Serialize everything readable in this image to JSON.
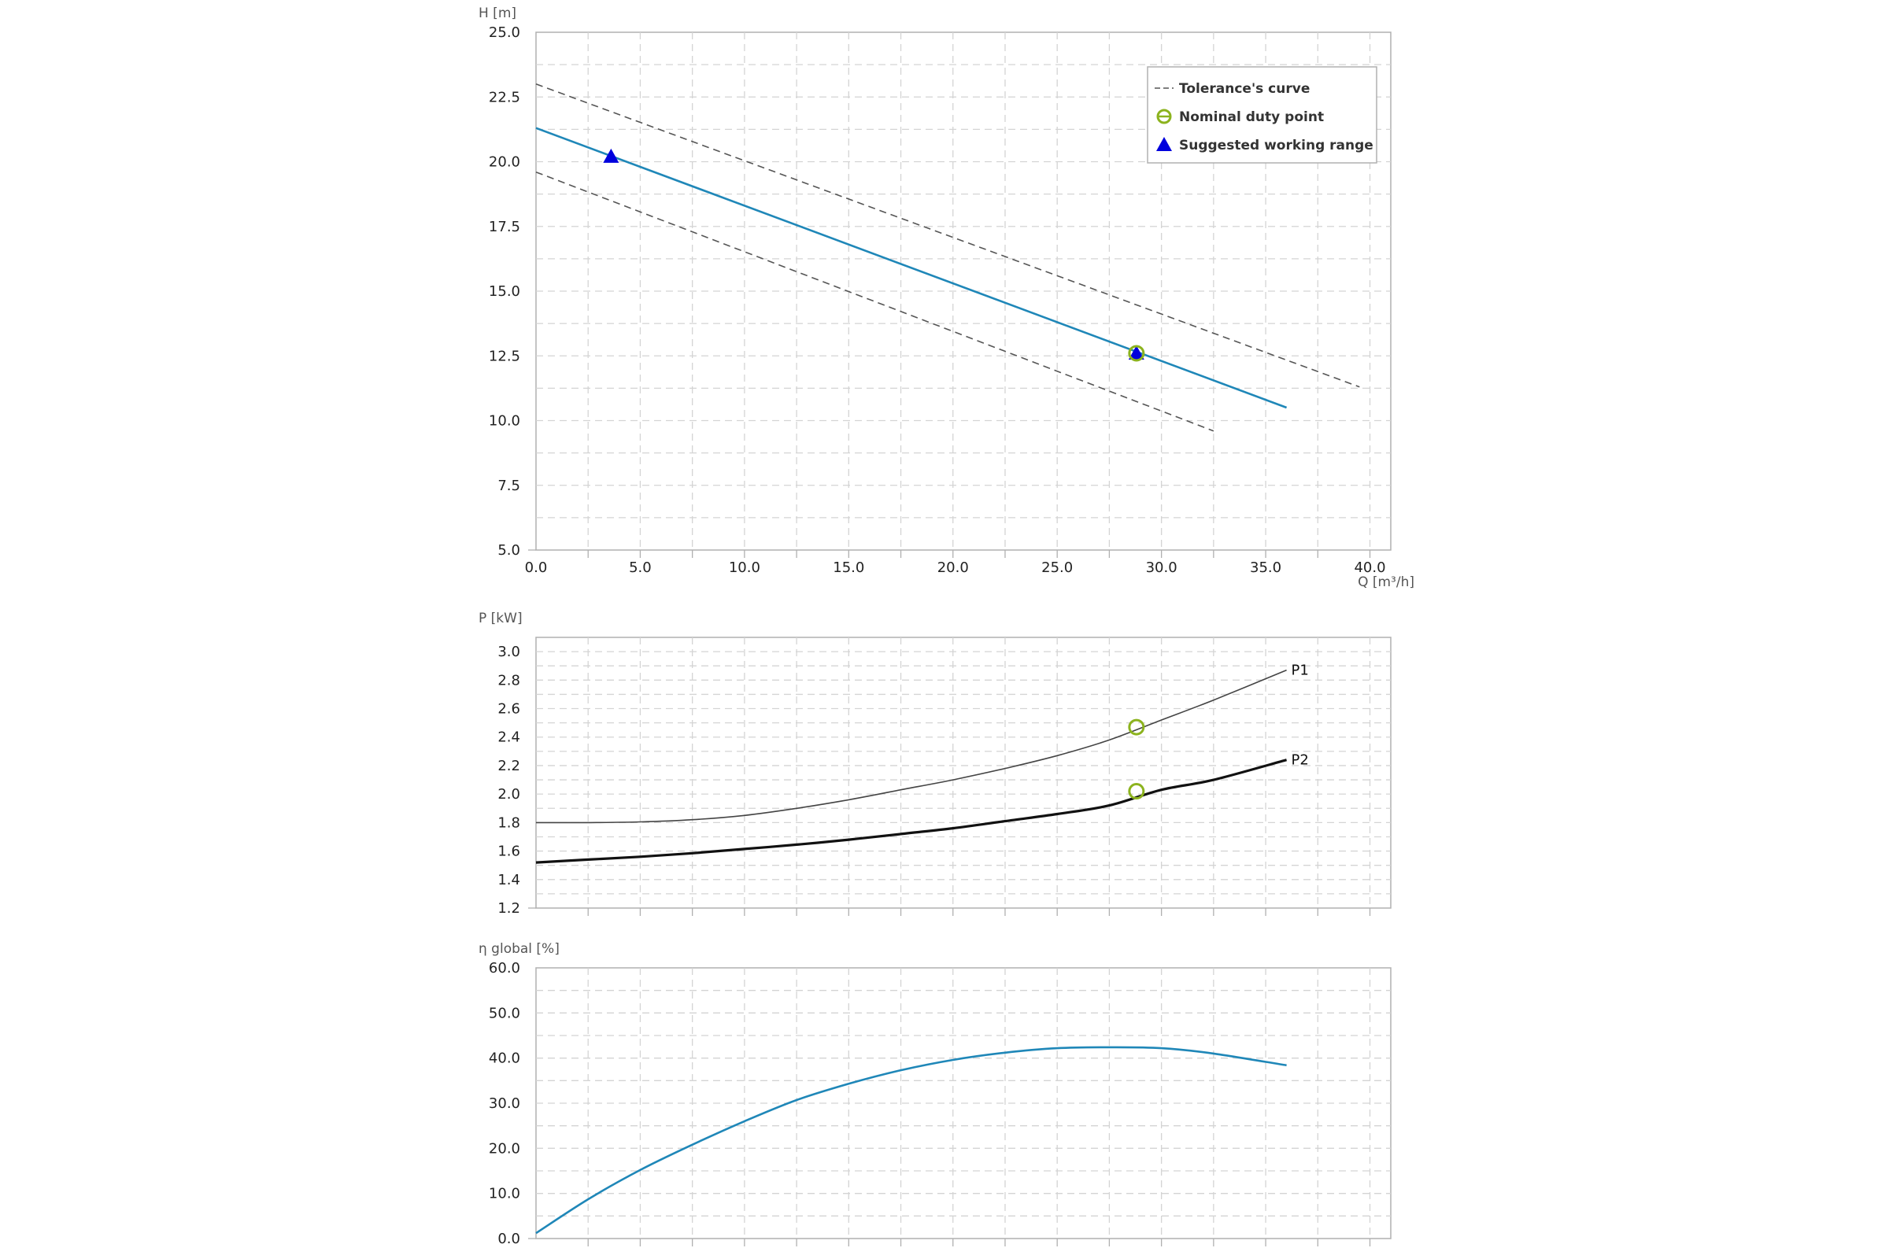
{
  "chart_data": [
    {
      "type": "line",
      "name": "head-chart",
      "ylabel": "H [m]",
      "xlabel": "Q [m³/h]",
      "xlim": [
        0,
        41
      ],
      "ylim": [
        5,
        25
      ],
      "x_ticks": [
        "0.0",
        "5.0",
        "10.0",
        "15.0",
        "20.0",
        "25.0",
        "30.0",
        "35.0",
        "40.0"
      ],
      "y_ticks": [
        "5.0",
        "7.5",
        "10.0",
        "12.5",
        "15.0",
        "17.5",
        "20.0",
        "22.5",
        "25.0"
      ],
      "grid": true,
      "legend": {
        "placement": "top-right",
        "entries": [
          {
            "label": "Tolerance's curve",
            "symbol": "dashed-line",
            "color": "#555555"
          },
          {
            "label": "Nominal duty point",
            "symbol": "circle-open",
            "color": "#8cb31e"
          },
          {
            "label": "Suggested working range",
            "symbol": "triangle",
            "color": "#0000dd"
          }
        ]
      },
      "series": [
        {
          "role": "pump-curve",
          "color": "#1f87b8",
          "x": [
            0,
            36
          ],
          "y": [
            21.3,
            10.5
          ]
        },
        {
          "role": "tolerance-upper",
          "color": "#555555",
          "x": [
            0,
            39.5
          ],
          "y": [
            23.0,
            11.3
          ]
        },
        {
          "role": "tolerance-lower",
          "color": "#555555",
          "x": [
            0,
            32.5
          ],
          "y": [
            19.6,
            9.6
          ]
        }
      ],
      "markers": [
        {
          "role": "working-range-start",
          "shape": "triangle",
          "color": "#0000dd",
          "x": 3.6,
          "y": 20.2
        },
        {
          "role": "working-range-end",
          "shape": "triangle",
          "color": "#0000dd",
          "x": 28.8,
          "y": 12.6
        },
        {
          "role": "duty-point",
          "shape": "circle-open",
          "color": "#8cb31e",
          "x": 28.8,
          "y": 12.6
        }
      ]
    },
    {
      "type": "line",
      "name": "power-chart",
      "ylabel": "P [kW]",
      "xlim": [
        0,
        41
      ],
      "ylim": [
        1.2,
        3.1
      ],
      "y_ticks": [
        "1.2",
        "1.4",
        "1.6",
        "1.8",
        "2.0",
        "2.2",
        "2.4",
        "2.6",
        "2.8",
        "3.0"
      ],
      "grid": true,
      "series": [
        {
          "name": "P1",
          "color": "#444444",
          "x": [
            0,
            2.5,
            5,
            7.5,
            10,
            12.5,
            15,
            17.5,
            20,
            22.5,
            25,
            27.5,
            30,
            32.5,
            36
          ],
          "y": [
            1.8,
            1.8,
            1.805,
            1.82,
            1.85,
            1.9,
            1.96,
            2.03,
            2.1,
            2.18,
            2.27,
            2.38,
            2.52,
            2.66,
            2.87
          ]
        },
        {
          "name": "P2",
          "color": "#111111",
          "x": [
            0,
            2.5,
            5,
            7.5,
            10,
            12.5,
            15,
            17.5,
            20,
            22.5,
            25,
            27.5,
            30,
            32.5,
            36
          ],
          "y": [
            1.52,
            1.54,
            1.56,
            1.585,
            1.615,
            1.645,
            1.68,
            1.72,
            1.76,
            1.81,
            1.86,
            1.92,
            2.03,
            2.1,
            2.24
          ]
        }
      ],
      "markers": [
        {
          "role": "duty-point-p1",
          "shape": "circle-open",
          "color": "#8cb31e",
          "x": 28.8,
          "y": 2.47
        },
        {
          "role": "duty-point-p2",
          "shape": "circle-open",
          "color": "#8cb31e",
          "x": 28.8,
          "y": 2.02
        }
      ]
    },
    {
      "type": "line",
      "name": "efficiency-chart",
      "ylabel": "η global [%]",
      "xlim": [
        0,
        41
      ],
      "ylim": [
        0,
        60
      ],
      "y_ticks": [
        "0.0",
        "10.0",
        "20.0",
        "30.0",
        "40.0",
        "50.0",
        "60.0"
      ],
      "grid": true,
      "series": [
        {
          "role": "efficiency",
          "color": "#1f87b8",
          "x": [
            0,
            2.5,
            5,
            7.5,
            10,
            12.5,
            15,
            17.5,
            20,
            22.5,
            25,
            27.5,
            30,
            32.5,
            36
          ],
          "y": [
            1.2,
            8.7,
            15.2,
            20.8,
            26.0,
            30.7,
            34.3,
            37.3,
            39.6,
            41.2,
            42.2,
            42.4,
            42.2,
            41.0,
            38.4
          ]
        }
      ]
    }
  ]
}
